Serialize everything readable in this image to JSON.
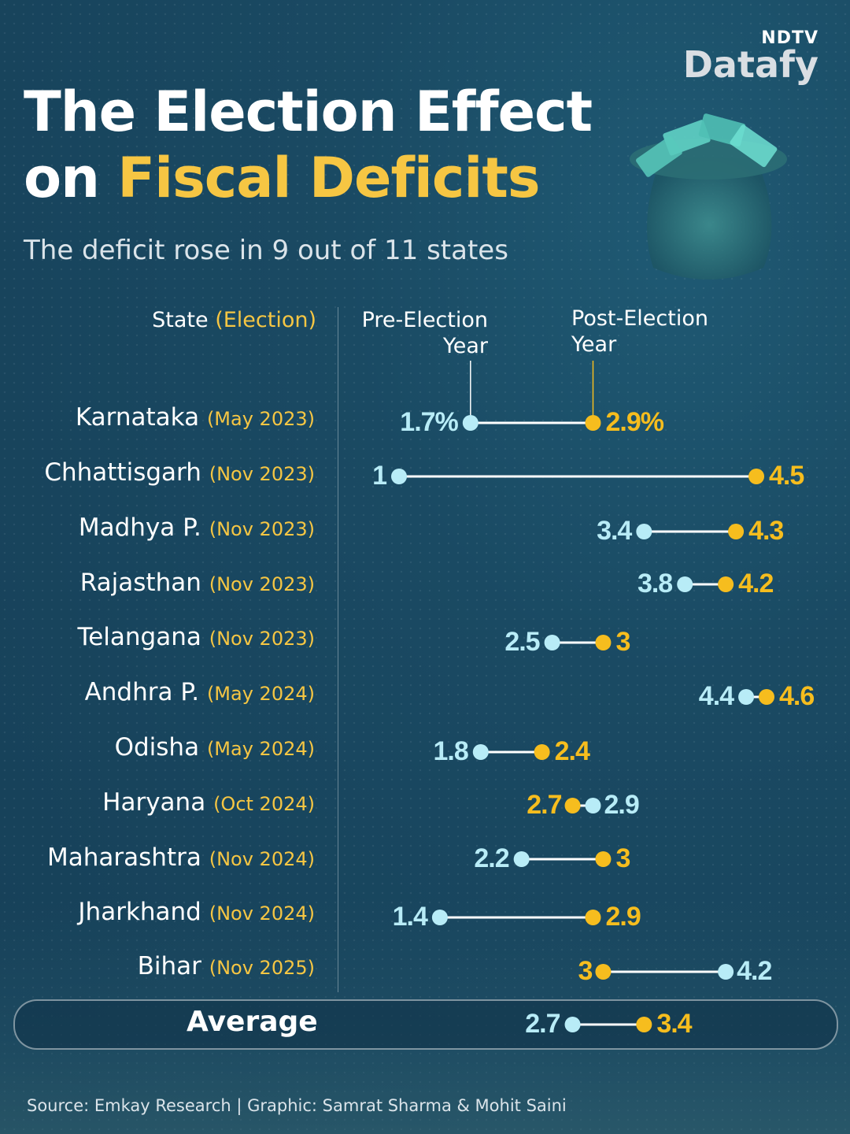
{
  "brand": {
    "top": "NDTV",
    "name": "Datafy"
  },
  "title": {
    "line1": "The Election Effect",
    "line2_prefix": "on ",
    "line2_highlight": "Fiscal Deficits"
  },
  "subtitle": "The deficit rose in 9 out of 11 states",
  "headers": {
    "state": "State ",
    "election": "(Election)",
    "pre_line1": "Pre-Election",
    "pre_line2": "Year",
    "post_line1": "Post-Election",
    "post_line2": "Year"
  },
  "colors": {
    "pre": "#b8ecf7",
    "post": "#f6bd1e",
    "connector": "#ffffff",
    "highlight": "#f6c643"
  },
  "chart_data": {
    "type": "dumbbell",
    "series": [
      {
        "name": "Pre-Election Year"
      },
      {
        "name": "Post-Election Year"
      }
    ],
    "rows": [
      {
        "state": "Karnataka",
        "election": "(May 2023)",
        "pre": 1.7,
        "post": 2.9,
        "pre_label": "1.7%",
        "post_label": "2.9%"
      },
      {
        "state": "Chhattisgarh",
        "election": "(Nov 2023)",
        "pre": 1.0,
        "post": 4.5,
        "pre_label": "1",
        "post_label": "4.5"
      },
      {
        "state": "Madhya P.",
        "election": "(Nov 2023)",
        "pre": 3.4,
        "post": 4.3,
        "pre_label": "3.4",
        "post_label": "4.3"
      },
      {
        "state": "Rajasthan",
        "election": "(Nov 2023)",
        "pre": 3.8,
        "post": 4.2,
        "pre_label": "3.8",
        "post_label": "4.2"
      },
      {
        "state": "Telangana",
        "election": "(Nov 2023)",
        "pre": 2.5,
        "post": 3.0,
        "pre_label": "2.5",
        "post_label": "3"
      },
      {
        "state": "Andhra P.",
        "election": "(May 2024)",
        "pre": 4.4,
        "post": 4.6,
        "pre_label": "4.4",
        "post_label": "4.6"
      },
      {
        "state": "Odisha",
        "election": "(May 2024)",
        "pre": 1.8,
        "post": 2.4,
        "pre_label": "1.8",
        "post_label": "2.4"
      },
      {
        "state": "Haryana",
        "election": "(Oct 2024)",
        "pre": 2.9,
        "post": 2.7,
        "pre_label": "2.9",
        "post_label": "2.7"
      },
      {
        "state": "Maharashtra",
        "election": "(Nov 2024)",
        "pre": 2.2,
        "post": 3.0,
        "pre_label": "2.2",
        "post_label": "3"
      },
      {
        "state": "Jharkhand",
        "election": "(Nov 2024)",
        "pre": 1.4,
        "post": 2.9,
        "pre_label": "1.4",
        "post_label": "2.9"
      },
      {
        "state": "Bihar",
        "election": "(Nov 2025)",
        "pre": 4.2,
        "post": 3.0,
        "pre_label": "4.2",
        "post_label": "3"
      }
    ],
    "average": {
      "label": "Average",
      "pre": 2.7,
      "post": 3.4,
      "pre_label": "2.7",
      "post_label": "3.4"
    }
  },
  "source": "Source: Emkay Research |  Graphic: Samrat Sharma & Mohit Saini"
}
